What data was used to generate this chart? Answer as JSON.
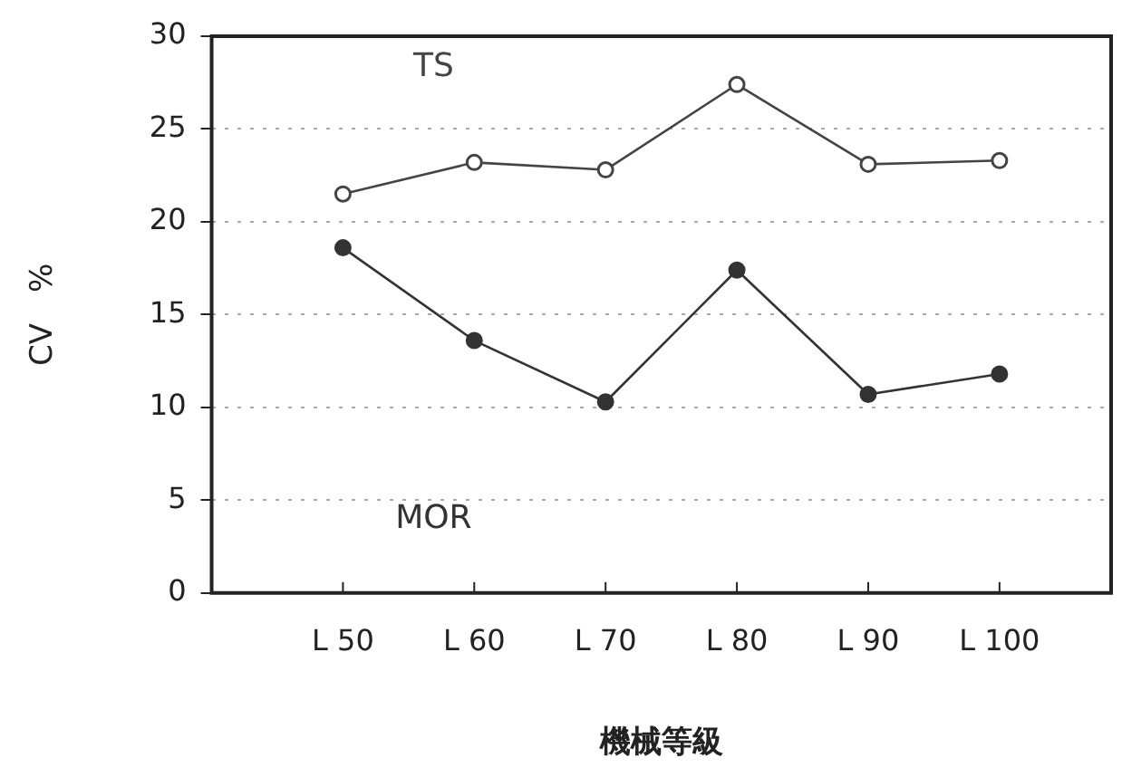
{
  "chart_data": {
    "type": "line",
    "xlabel": "機械等級",
    "ylabel": "CV　%",
    "categories": [
      "L 50",
      "L 60",
      "L 70",
      "L 80",
      "L 90",
      "L 100"
    ],
    "series": [
      {
        "name": "TS",
        "color": "#444444",
        "values": [
          21.5,
          23.2,
          22.8,
          27.4,
          23.1,
          23.3
        ]
      },
      {
        "name": "MOR",
        "color": "#333333",
        "values": [
          18.6,
          13.6,
          10.3,
          17.4,
          10.7,
          11.8
        ]
      }
    ],
    "ylim": [
      0,
      30
    ],
    "yticks": [
      0,
      5,
      10,
      15,
      20,
      25,
      30
    ],
    "grid": "y",
    "marker": "circle",
    "line_style": "solid",
    "legend": false
  }
}
